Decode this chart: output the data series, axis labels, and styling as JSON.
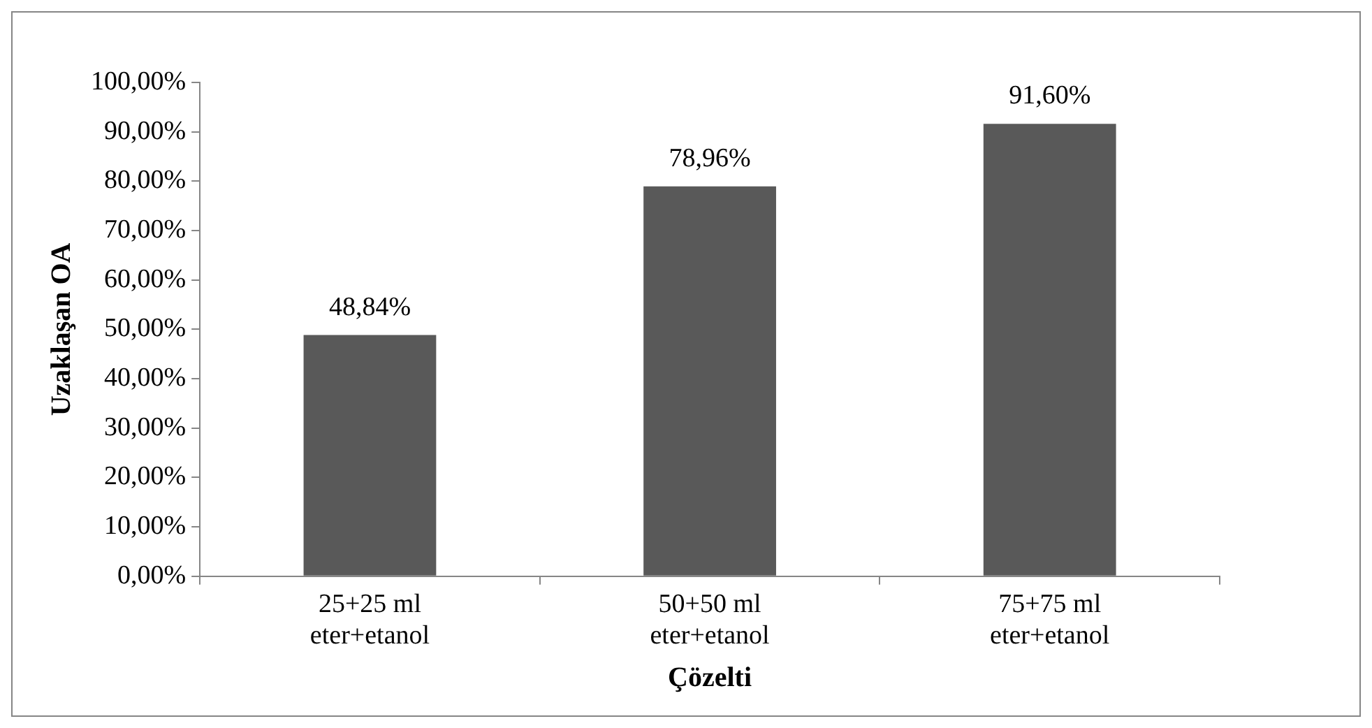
{
  "chart_data": {
    "type": "bar",
    "xlabel": "Çözelti",
    "ylabel": "Uzaklaşan OA",
    "categories": [
      "25+25 ml eter+etanol",
      "50+50 ml eter+etanol",
      "75+75 ml eter+etanol"
    ],
    "values": [
      48.84,
      78.96,
      91.6
    ],
    "color": "#595959",
    "value_labels": [
      "48,84%",
      "78,96%",
      "91,60%"
    ],
    "ylim": [
      0,
      100
    ],
    "yticks": [
      {
        "value": 0,
        "label": "0,00%"
      },
      {
        "value": 10,
        "label": "10,00%"
      },
      {
        "value": 20,
        "label": "20,00%"
      },
      {
        "value": 30,
        "label": "30,00%"
      },
      {
        "value": 40,
        "label": "40,00%"
      },
      {
        "value": 50,
        "label": "50,00%"
      },
      {
        "value": 60,
        "label": "60,00%"
      },
      {
        "value": 70,
        "label": "70,00%"
      },
      {
        "value": 80,
        "label": "80,00%"
      },
      {
        "value": 90,
        "label": "90,00%"
      },
      {
        "value": 100,
        "label": "100,00%"
      }
    ],
    "grid": false,
    "legend": false
  }
}
